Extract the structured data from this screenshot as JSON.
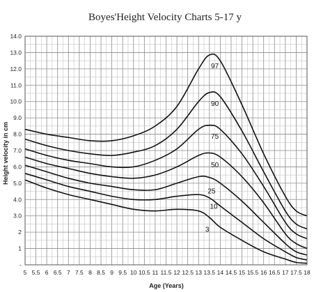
{
  "chart_data": {
    "type": "line",
    "title": "Boyes'Height Velocity Charts 5-17 y",
    "xlabel": "Age (Years)",
    "ylabel": "Height velocity in cm",
    "xlim": [
      5,
      18
    ],
    "ylim": [
      0,
      14
    ],
    "x_ticks": [
      "5",
      "5.5",
      "6",
      "6.5",
      "7",
      "7.5",
      "8",
      "8.5",
      "9",
      "9.5",
      "10",
      "10.5",
      "11",
      "11.5",
      "12",
      "12.5",
      "13",
      "13.5",
      "14",
      "14.5",
      "15",
      "15.5",
      "16",
      "16.5",
      "17",
      "17.5",
      "18"
    ],
    "x_tick_values": [
      5,
      5.5,
      6,
      6.5,
      7,
      7.5,
      8,
      8.5,
      9,
      9.5,
      10,
      10.5,
      11,
      11.5,
      12,
      12.5,
      13,
      13.5,
      14,
      14.5,
      15,
      15.5,
      16,
      16.5,
      17,
      17.5,
      18
    ],
    "y_ticks": [
      "-",
      "1",
      "2",
      "3.0",
      "4.0",
      "5.0",
      "6.0",
      "7.0",
      "8.0",
      "9.0",
      "10.0",
      "11.0",
      "12.0",
      "13.0",
      "14.0"
    ],
    "y_tick_values": [
      0,
      1,
      2,
      3,
      4,
      5,
      6,
      7,
      8,
      9,
      10,
      11,
      12,
      13,
      14
    ],
    "grid": true,
    "x": [
      5,
      6,
      7,
      8,
      9,
      10,
      11,
      12,
      13,
      13.5,
      14,
      15,
      16,
      17,
      17.5,
      18
    ],
    "series": [
      {
        "name": "97",
        "label_at": [
          13.75,
          12.2
        ],
        "values": [
          8.3,
          8.0,
          7.8,
          7.6,
          7.6,
          7.9,
          8.5,
          9.7,
          12.0,
          12.85,
          12.5,
          9.8,
          6.8,
          4.2,
          3.3,
          3.0
        ]
      },
      {
        "name": "90",
        "label_at": [
          13.75,
          9.9
        ],
        "values": [
          7.7,
          7.3,
          7.0,
          6.8,
          6.7,
          6.9,
          7.3,
          8.3,
          10.0,
          10.55,
          10.3,
          8.2,
          5.7,
          3.3,
          2.5,
          2.2
        ]
      },
      {
        "name": "75",
        "label_at": [
          13.75,
          7.9
        ],
        "values": [
          7.1,
          6.7,
          6.4,
          6.2,
          6.0,
          6.0,
          6.4,
          7.1,
          8.3,
          8.55,
          8.3,
          6.8,
          4.8,
          2.6,
          1.9,
          1.6
        ]
      },
      {
        "name": "50",
        "label_at": [
          13.75,
          6.15
        ],
        "values": [
          6.6,
          6.2,
          5.9,
          5.6,
          5.4,
          5.3,
          5.5,
          6.0,
          6.7,
          6.85,
          6.6,
          5.4,
          3.8,
          1.9,
          1.3,
          1.0
        ]
      },
      {
        "name": "25",
        "label_at": [
          13.6,
          4.55
        ],
        "values": [
          6.1,
          5.7,
          5.3,
          5.0,
          4.8,
          4.6,
          4.6,
          5.0,
          5.4,
          5.35,
          5.0,
          3.9,
          2.6,
          1.3,
          0.8,
          0.6
        ]
      },
      {
        "name": "10",
        "label_at": [
          13.7,
          3.6
        ],
        "values": [
          5.6,
          5.2,
          4.8,
          4.5,
          4.2,
          4.0,
          4.0,
          4.2,
          4.3,
          4.1,
          3.6,
          2.6,
          1.6,
          0.8,
          0.45,
          0.3
        ]
      },
      {
        "name": "3",
        "label_at": [
          13.4,
          2.2
        ],
        "values": [
          5.2,
          4.7,
          4.3,
          4.0,
          3.7,
          3.4,
          3.3,
          3.4,
          3.3,
          2.9,
          2.3,
          1.5,
          0.8,
          0.35,
          0.15,
          0.1
        ]
      }
    ]
  }
}
